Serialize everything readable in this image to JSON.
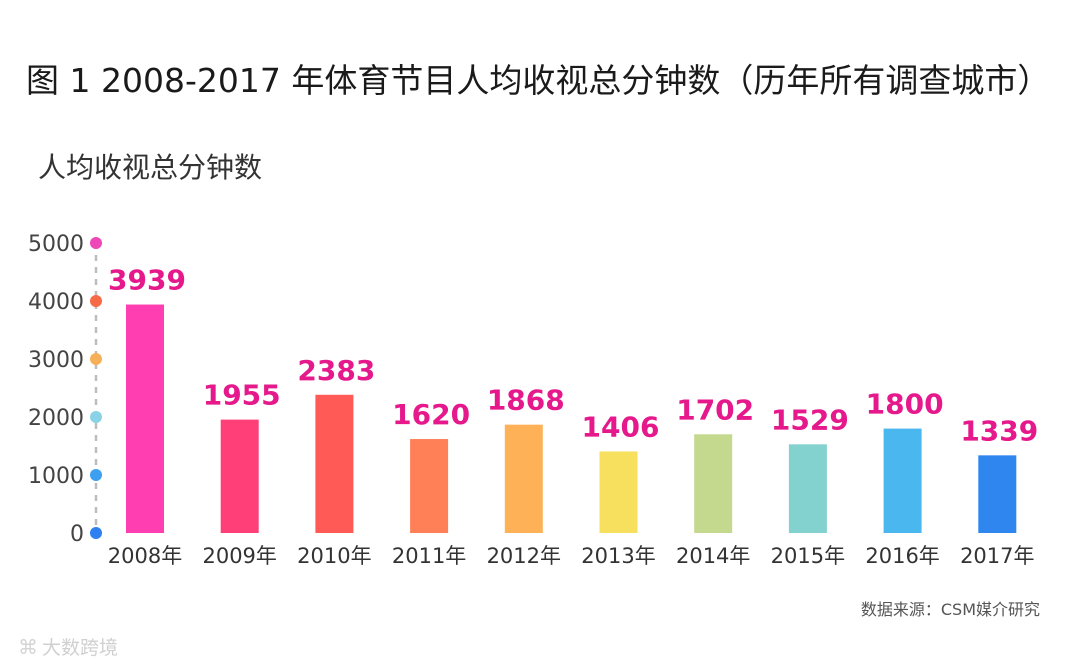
{
  "title": "图 1 2008-2017 年体育节目人均收视总分钟数（历年所有调查城市）",
  "ylabel": "人均收视总分钟数",
  "source": "数据来源：CSM媒介研究",
  "watermark": "大数跨境",
  "chart_data": {
    "type": "bar",
    "categories": [
      "2008年",
      "2009年",
      "2010年",
      "2011年",
      "2012年",
      "2013年",
      "2014年",
      "2015年",
      "2016年",
      "2017年"
    ],
    "values": [
      3939,
      1955,
      2383,
      1620,
      1868,
      1406,
      1702,
      1529,
      1800,
      1339
    ],
    "ylabel": "人均收视总分钟数",
    "ylim": [
      0,
      5000
    ],
    "yticks": [
      0,
      1000,
      2000,
      3000,
      4000,
      5000
    ],
    "ytick_labels": [
      "0",
      "1000",
      "2000",
      "3000",
      "4000",
      "5000"
    ],
    "bar_colors": [
      "#ff3fb1",
      "#ff3f78",
      "#ff5a55",
      "#ff7f57",
      "#ffb157",
      "#f6e05e",
      "#c4d98e",
      "#84d2d0",
      "#4ab8ee",
      "#2f86ef"
    ],
    "tick_dot_colors": [
      "#2e7ff0",
      "#3c9ff0",
      "#8ad3e6",
      "#f7b05a",
      "#f66a45",
      "#ee48b8"
    ],
    "label_color": "#e6198c",
    "grid": false
  }
}
